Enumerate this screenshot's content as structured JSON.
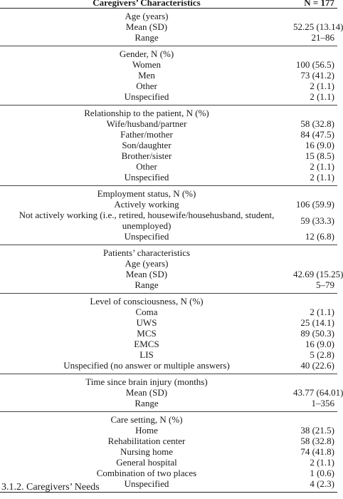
{
  "table": {
    "header": {
      "label": "Caregivers’ Characteristics",
      "value": "N = 177"
    },
    "groups": [
      {
        "rows": [
          {
            "label": "Age (years)",
            "value": ""
          },
          {
            "label": "Mean (SD)",
            "value": "52.25 (13.14)"
          },
          {
            "label": "Range",
            "value": "21–86"
          }
        ]
      },
      {
        "rows": [
          {
            "label": "Gender, N (%)",
            "value": ""
          },
          {
            "label": "Women",
            "value": "100 (56.5)"
          },
          {
            "label": "Men",
            "value": "73 (41.2)"
          },
          {
            "label": "Other",
            "value": "2 (1.1)"
          },
          {
            "label": "Unspecified",
            "value": "2 (1.1)"
          }
        ]
      },
      {
        "rows": [
          {
            "label": "Relationship to the patient, N (%)",
            "value": ""
          },
          {
            "label": "Wife/husband/partner",
            "value": "58 (32.8)"
          },
          {
            "label": "Father/mother",
            "value": "84 (47.5)"
          },
          {
            "label": "Son/daughter",
            "value": "16 (9.0)"
          },
          {
            "label": "Brother/sister",
            "value": "15 (8.5)"
          },
          {
            "label": "Other",
            "value": "2 (1.1)"
          },
          {
            "label": "Unspecified",
            "value": "2 (1.1)"
          }
        ]
      },
      {
        "rows": [
          {
            "label": "Employment status, N (%)",
            "value": ""
          },
          {
            "label": "Actively working",
            "value": "106 (59.9)"
          },
          {
            "label": "Not actively working (i.e., retired, housewife/househusband, student, unemployed)",
            "value": "59 (33.3)",
            "two_line": true
          },
          {
            "label": "Unspecified",
            "value": "12 (6.8)"
          }
        ]
      },
      {
        "rows": [
          {
            "label": "Patients’ characteristics",
            "value": ""
          },
          {
            "label": "Age (years)",
            "value": ""
          },
          {
            "label": "Mean (SD)",
            "value": "42.69 (15.25)"
          },
          {
            "label": "Range",
            "value": "5–79"
          }
        ]
      },
      {
        "rows": [
          {
            "label": "Level of consciousness, N (%)",
            "value": ""
          },
          {
            "label": "Coma",
            "value": "2 (1.1)"
          },
          {
            "label": "UWS",
            "value": "25 (14.1)"
          },
          {
            "label": "MCS",
            "value": "89 (50.3)"
          },
          {
            "label": "EMCS",
            "value": "16 (9.0)"
          },
          {
            "label": "LIS",
            "value": "5 (2.8)"
          },
          {
            "label": "Unspecified (no answer or multiple answers)",
            "value": "40 (22.6)"
          }
        ]
      },
      {
        "rows": [
          {
            "label": "Time since brain injury (months)",
            "value": ""
          },
          {
            "label": "Mean (SD)",
            "value": "43.77 (64.01)"
          },
          {
            "label": "Range",
            "value": "1–356"
          }
        ]
      },
      {
        "rows": [
          {
            "label": "Care setting, N (%)",
            "value": ""
          },
          {
            "label": "Home",
            "value": "38 (21.5)"
          },
          {
            "label": "Rehabilitation center",
            "value": "58 (32.8)"
          },
          {
            "label": "Nursing home",
            "value": "74 (41.8)"
          },
          {
            "label": "General hospital",
            "value": "2 (1.1)"
          },
          {
            "label": "Combination of two places",
            "value": "1 (0.6)"
          },
          {
            "label": "Unspecified",
            "value": "4 (2.3)"
          }
        ]
      }
    ]
  },
  "section_heading": "3.1.2. Caregivers’ Needs"
}
